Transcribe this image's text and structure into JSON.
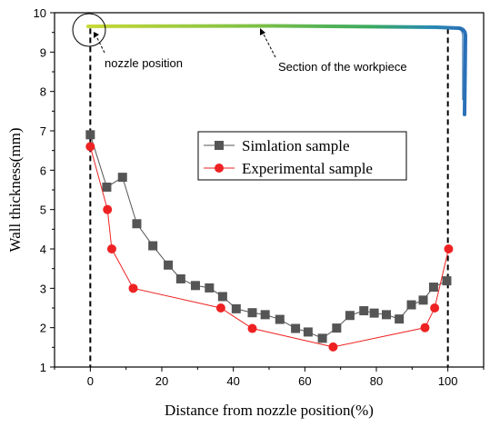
{
  "chart_data": {
    "type": "line",
    "xlabel": "Distance from nozzle position(%)",
    "ylabel": "Wall thickness(mm)",
    "xlim": [
      -10,
      110
    ],
    "ylim": [
      1,
      10
    ],
    "xticks": [
      0,
      20,
      40,
      60,
      80,
      100
    ],
    "yticks": [
      1,
      2,
      3,
      4,
      5,
      6,
      7,
      8,
      9,
      10
    ],
    "grid": false,
    "legend_position": "center",
    "series": [
      {
        "name": "Simlation sample",
        "color": "#555555",
        "marker": "square",
        "points": [
          [
            0,
            6.9
          ],
          [
            4.6,
            5.57
          ],
          [
            9,
            5.82
          ],
          [
            13,
            4.64
          ],
          [
            17.5,
            4.08
          ],
          [
            21.8,
            3.59
          ],
          [
            25.3,
            3.24
          ],
          [
            29.4,
            3.07
          ],
          [
            33.3,
            3.01
          ],
          [
            37,
            2.79
          ],
          [
            40.8,
            2.48
          ],
          [
            45.3,
            2.38
          ],
          [
            48.9,
            2.33
          ],
          [
            53,
            2.21
          ],
          [
            57.4,
            1.98
          ],
          [
            60.9,
            1.89
          ],
          [
            64.9,
            1.73
          ],
          [
            68.9,
            1.99
          ],
          [
            72.6,
            2.31
          ],
          [
            76.5,
            2.43
          ],
          [
            79.4,
            2.37
          ],
          [
            82.8,
            2.33
          ],
          [
            86.4,
            2.22
          ],
          [
            89.8,
            2.58
          ],
          [
            93.1,
            2.7
          ],
          [
            96,
            3.03
          ],
          [
            99.7,
            3.19
          ]
        ]
      },
      {
        "name": "Experimental sample",
        "color": "#ee2222",
        "marker": "circle",
        "points": [
          [
            0,
            6.6
          ],
          [
            4.8,
            5.0
          ],
          [
            6,
            4.0
          ],
          [
            12,
            3.0
          ],
          [
            36.5,
            2.5
          ],
          [
            45.3,
            1.98
          ],
          [
            67.9,
            1.51
          ],
          [
            93.6,
            2.0
          ],
          [
            96.3,
            2.5
          ],
          [
            100.2,
            4.0
          ]
        ]
      }
    ],
    "vertical_lines": [
      0,
      100
    ],
    "annotations": [
      {
        "text": "nozzle position"
      },
      {
        "text": "Section of the workpiece"
      }
    ]
  }
}
